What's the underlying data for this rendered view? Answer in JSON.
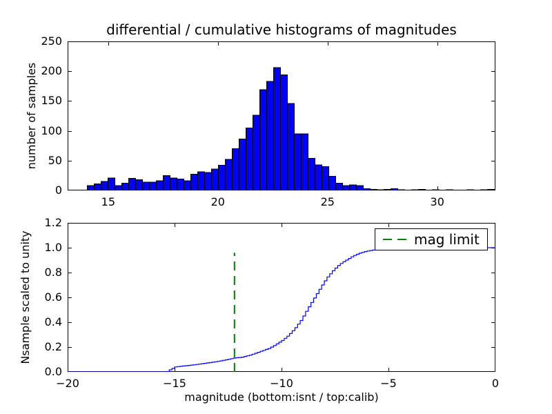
{
  "title": "differential / cumulative histograms of magnitudes",
  "colors": {
    "background": "#ffffff",
    "axes_edge": "#000000",
    "text": "#000000",
    "bar_fill": "#0000ff",
    "bar_edge": "#000000",
    "cumulative_line": "#0000ff",
    "mag_limit_line": "#008000"
  },
  "chart_data": [
    {
      "type": "bar",
      "role": "differential-histogram",
      "ylabel": "number of samples",
      "xlim": [
        13.15,
        32.65
      ],
      "ylim": [
        0,
        250
      ],
      "xtick_values": [
        15,
        20,
        25,
        30
      ],
      "xtick_labels": [
        "15",
        "20",
        "25",
        "30"
      ],
      "ytick_values": [
        0,
        50,
        100,
        150,
        200,
        250
      ],
      "ytick_labels": [
        "0",
        "50",
        "100",
        "150",
        "200",
        "250"
      ],
      "grid": false,
      "bin_start": 14.05,
      "bin_width": 0.3145,
      "counts": [
        8,
        11,
        15,
        21,
        8,
        12,
        20,
        18,
        14,
        14,
        16,
        25,
        21,
        19,
        16,
        27,
        31,
        30,
        36,
        42,
        52,
        70,
        86,
        105,
        126,
        169,
        183,
        206,
        194,
        146,
        95,
        95,
        54,
        43,
        40,
        24,
        12,
        8,
        9,
        8,
        3,
        2,
        1,
        2,
        3,
        1,
        0,
        1,
        2,
        0,
        1,
        0,
        1,
        0,
        0,
        1,
        0,
        1,
        2
      ]
    },
    {
      "type": "line",
      "role": "cumulative-histogram",
      "line_style": "step",
      "ylabel": "Nsample scaled to unity",
      "xlabel": "magnitude (bottom:isnt / top:calib)",
      "xlim": [
        -20,
        0
      ],
      "ylim": [
        0,
        1.2
      ],
      "xtick_values": [
        -20,
        -15,
        -10,
        -5,
        0
      ],
      "xtick_labels": [
        "−20",
        "−15",
        "−10",
        "−5",
        "0"
      ],
      "ytick_values": [
        0,
        0.2,
        0.4,
        0.6,
        0.8,
        1.0,
        1.2
      ],
      "ytick_labels": [
        "0.0",
        "0.2",
        "0.4",
        "0.6",
        "0.8",
        "1.0",
        "1.2"
      ],
      "grid": false,
      "step_width": 0.125,
      "cumulative_anchors": [
        [
          -20,
          0
        ],
        [
          -15.4,
          0
        ],
        [
          -15.3,
          0.012
        ],
        [
          -15.1,
          0.03
        ],
        [
          -15.0,
          0.04
        ],
        [
          -14.5,
          0.05
        ],
        [
          -14.0,
          0.06
        ],
        [
          -13.5,
          0.072
        ],
        [
          -13.0,
          0.085
        ],
        [
          -12.6,
          0.098
        ],
        [
          -12.2,
          0.113
        ],
        [
          -11.9,
          0.118
        ],
        [
          -11.5,
          0.135
        ],
        [
          -11.2,
          0.153
        ],
        [
          -10.9,
          0.172
        ],
        [
          -10.6,
          0.19
        ],
        [
          -10.3,
          0.22
        ],
        [
          -10.0,
          0.253
        ],
        [
          -9.7,
          0.295
        ],
        [
          -9.4,
          0.35
        ],
        [
          -9.1,
          0.42
        ],
        [
          -8.8,
          0.51
        ],
        [
          -8.5,
          0.595
        ],
        [
          -8.2,
          0.68
        ],
        [
          -7.9,
          0.76
        ],
        [
          -7.6,
          0.82
        ],
        [
          -7.3,
          0.868
        ],
        [
          -7.0,
          0.9
        ],
        [
          -6.7,
          0.932
        ],
        [
          -6.4,
          0.955
        ],
        [
          -6.1,
          0.97
        ],
        [
          -5.8,
          0.98
        ],
        [
          -5.4,
          0.99
        ],
        [
          -5.0,
          0.995
        ],
        [
          -4.5,
          0.999
        ],
        [
          -4.0,
          1.0
        ],
        [
          0,
          1.0
        ]
      ],
      "mag_limit": {
        "x": -12.2,
        "ymin": 0,
        "ymax": 0.96
      },
      "legend": [
        {
          "label": "mag limit",
          "line_style": "dashed",
          "color": "#008000",
          "position": "upper right"
        }
      ]
    }
  ]
}
